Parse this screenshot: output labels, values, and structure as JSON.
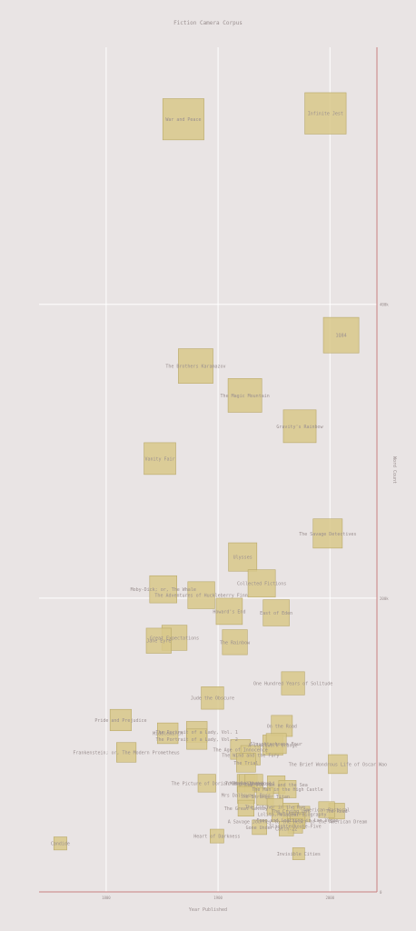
{
  "chart_data": {
    "type": "scatter",
    "title": "Fiction Camera Corpus",
    "xlabel": "Year Published",
    "ylabel": "Word Count",
    "xlim": [
      1740,
      2042
    ],
    "ylim": [
      0,
      575000
    ],
    "x_ticks": [
      {
        "value": 1800,
        "label": "1800"
      },
      {
        "value": 1900,
        "label": "1900"
      },
      {
        "value": 2000,
        "label": "2000"
      }
    ],
    "y_ticks": [
      {
        "value": 0,
        "label": "0"
      },
      {
        "value": 200000,
        "label": "200k"
      },
      {
        "value": 400000,
        "label": "400k"
      }
    ],
    "grid": true,
    "marker_color": "#d8c88a",
    "marker_edge": "#b9a96a",
    "points": [
      {
        "label": "War and Peace",
        "x": 1869,
        "y": 526000
      },
      {
        "label": "Infinite Jest",
        "x": 1996,
        "y": 530000
      },
      {
        "label": "1Q84",
        "x": 2010,
        "y": 379000
      },
      {
        "label": "The Brothers Karamazov",
        "x": 1880,
        "y": 358000
      },
      {
        "label": "The Magic Mountain",
        "x": 1924,
        "y": 338000
      },
      {
        "label": "Gravity's Rainbow",
        "x": 1973,
        "y": 317000
      },
      {
        "label": "Vanity Fair",
        "x": 1848,
        "y": 295000
      },
      {
        "label": "The Savage Detectives",
        "x": 1998,
        "y": 244000
      },
      {
        "label": "Ulysses",
        "x": 1922,
        "y": 228000
      },
      {
        "label": "Collected Fictions",
        "x": 1939,
        "y": 210000
      },
      {
        "label": "Moby-Dick; or, The Whale",
        "x": 1851,
        "y": 206000
      },
      {
        "label": "The Adventures of Huckleberry Finn",
        "x": 1885,
        "y": 202000
      },
      {
        "label": "Howard's End",
        "x": 1910,
        "y": 191000
      },
      {
        "label": "East of Eden",
        "x": 1952,
        "y": 190000
      },
      {
        "label": "Great Expectations",
        "x": 1861,
        "y": 173000
      },
      {
        "label": "Jane Eyre",
        "x": 1847,
        "y": 171000
      },
      {
        "label": "The Rainbow",
        "x": 1915,
        "y": 170000
      },
      {
        "label": "One Hundred Years of Solitude",
        "x": 1967,
        "y": 142000
      },
      {
        "label": "Jude the Obscure",
        "x": 1895,
        "y": 132000
      },
      {
        "label": "Pride and Prejudice",
        "x": 1813,
        "y": 117000
      },
      {
        "label": "On the Road",
        "x": 1957,
        "y": 113000
      },
      {
        "label": "Middlemarch",
        "x": 1855,
        "y": 108000
      },
      {
        "label": "The Portrait of a Lady, Vol. 1",
        "x": 1881,
        "y": 109000
      },
      {
        "label": "The Portrait of a Lady, Vol. 2",
        "x": 1881,
        "y": 104000
      },
      {
        "label": "A Clockwork Orange",
        "x": 1949,
        "y": 100000
      },
      {
        "label": "Slaughterhouse Four",
        "x": 1952,
        "y": 101000
      },
      {
        "label": "Frankenstein; or, The Modern Prometheus",
        "x": 1818,
        "y": 95000
      },
      {
        "label": "The Age of Innocence",
        "x": 1920,
        "y": 97000
      },
      {
        "label": "The Wind and the Fury",
        "x": 1929,
        "y": 93000
      },
      {
        "label": "The Trial",
        "x": 1925,
        "y": 88000
      },
      {
        "label": "The Brief Wondrous Life of Oscar Wao",
        "x": 2007,
        "y": 87000
      },
      {
        "label": "The Picture of Dorian Gray",
        "x": 1890,
        "y": 74000
      },
      {
        "label": "Mrs Dalloway",
        "x": 1925,
        "y": 74000
      },
      {
        "label": "To the Lighthouse",
        "x": 1927,
        "y": 74000
      },
      {
        "label": "Brave New World",
        "x": 1932,
        "y": 74000
      },
      {
        "label": "The Old Man and the Sea",
        "x": 1952,
        "y": 73000
      },
      {
        "label": "The Man in the High Castle",
        "x": 1962,
        "y": 70000
      },
      {
        "label": "Mrs Dalloway, Ross",
        "x": 1925,
        "y": 66000
      },
      {
        "label": "The Stranger Titan",
        "x": 1942,
        "y": 65000
      },
      {
        "label": "The Great Gatsby",
        "x": 1925,
        "y": 57000
      },
      {
        "label": "The Catcher in the Rye",
        "x": 1951,
        "y": 58000
      },
      {
        "label": "The Road",
        "x": 2006,
        "y": 55000
      },
      {
        "label": "The Crying Lot",
        "x": 1965,
        "y": 55000
      },
      {
        "label": "American Pastoral",
        "x": 1997,
        "y": 56000
      },
      {
        "label": "Lolita, Vladimir",
        "x": 1955,
        "y": 53000
      },
      {
        "label": "Monsieur Biography",
        "x": 1975,
        "y": 53000
      },
      {
        "label": "Fear and Loathing in Las Vegas",
        "x": 1971,
        "y": 49000
      },
      {
        "label": "A Savage Journey to the Heart of the American Dream",
        "x": 1971,
        "y": 48000
      },
      {
        "label": "Slaughterhouse-Five",
        "x": 1969,
        "y": 45000
      },
      {
        "label": "Gone Under",
        "x": 1937,
        "y": 44000
      },
      {
        "label": "Catch-22",
        "x": 1961,
        "y": 43000
      },
      {
        "label": "Heart of Darkness",
        "x": 1899,
        "y": 38000
      },
      {
        "label": "Candide",
        "x": 1759,
        "y": 33000
      },
      {
        "label": "Invisible Cities",
        "x": 1972,
        "y": 26000
      }
    ]
  }
}
